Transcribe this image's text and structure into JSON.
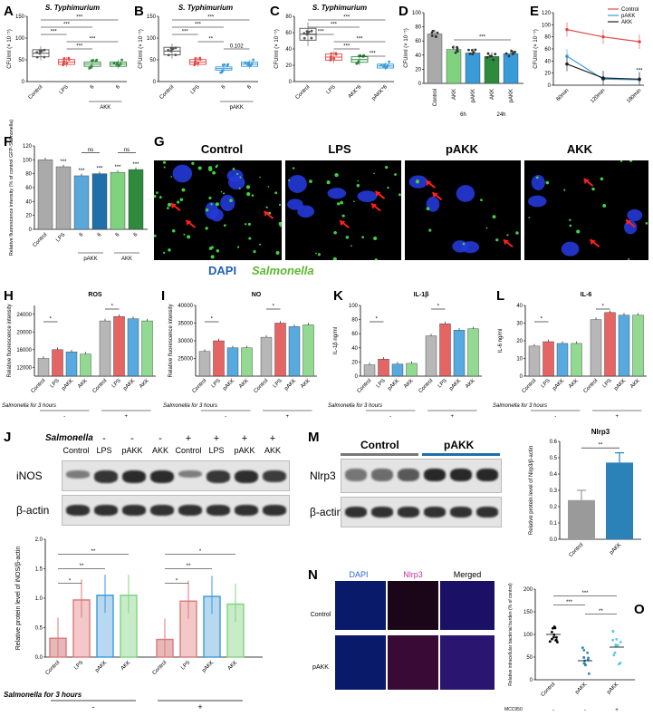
{
  "panel_letters": [
    "A",
    "B",
    "C",
    "D",
    "E",
    "F",
    "G",
    "H",
    "I",
    "K",
    "L",
    "J",
    "M",
    "N",
    "O"
  ],
  "colors": {
    "control": "#555555",
    "lps": "#e04a4a",
    "pakk": "#3a9bd9",
    "akk": "#2e8b3e",
    "akk_light": "#7fd37f",
    "gray": "#aaaaaa",
    "blue_dark": "#1f6fa8"
  },
  "A": {
    "title": "S. Typhimurium",
    "ylabel": "CFU/ml (× 10⁻⁵)",
    "xticks": [
      "Control",
      "LPS",
      "6",
      "6"
    ],
    "group": "AKK",
    "sig": [
      "***",
      "***",
      "***",
      "***",
      "***"
    ]
  },
  "B": {
    "title": "S. Typhimurium",
    "ylabel": "CFU/ml (× 10⁻⁵)",
    "xticks": [
      "Control",
      "LPS",
      "6",
      "6"
    ],
    "group": "pAKK",
    "sig": [
      "***",
      "***",
      "***",
      "**",
      "0.102"
    ]
  },
  "C": {
    "title": "S. Typhimurium",
    "ylabel": "CFU/ml (× 10⁻⁵)",
    "xticks": [
      "Control",
      "LPS",
      "AKK*6",
      "pAKK*6"
    ],
    "sig": [
      "***",
      "***",
      "***",
      "***",
      "***",
      "***"
    ]
  },
  "D": {
    "ylabel": "CFU/ml (× 10⁻⁵)",
    "xticks": [
      "Control",
      "AKK",
      "pAKK",
      "AKK",
      "pAKK"
    ],
    "subgroups": [
      "6h",
      "24h"
    ],
    "sig": [
      "***"
    ]
  },
  "E": {
    "ylabel": "CFU/ml (× 10⁻⁵)",
    "legend": [
      "Control",
      "pAKK",
      "AKK"
    ],
    "xticks": [
      "60min",
      "120min",
      "180min"
    ],
    "sig": [
      "**",
      "***"
    ]
  },
  "F": {
    "ylabel": "Relative fluorescence intensity (% of control GFP-Salmonella)",
    "xticks": [
      "Control",
      "LPS",
      "6",
      "6",
      "6",
      "6"
    ],
    "groups": [
      "pAKK",
      "AKK"
    ],
    "sig": [
      "***",
      "***",
      "***",
      "***",
      "***",
      "ns",
      "ns"
    ]
  },
  "G": {
    "labels": [
      "Control",
      "LPS",
      "pAKK",
      "AKK"
    ],
    "legend_dapi": "DAPI",
    "legend_salmonella": "Salmonella"
  },
  "H": {
    "title": "ROS",
    "ylabel": "Relative fluorescence intensity",
    "xticks": [
      "Control",
      "LPS",
      "pAKK",
      "AKK",
      "Control",
      "LPS",
      "pAKK",
      "AKK"
    ],
    "salmonella": "Salmonella for 3 hours",
    "minus": "-",
    "plus": "+"
  },
  "I": {
    "title": "NO",
    "ylabel": "Relative fluorescence intensity",
    "xticks": [
      "Control",
      "LPS",
      "pAKK",
      "AKK",
      "Control",
      "LPS",
      "pAKK",
      "AKK"
    ],
    "salmonella": "Salmonella for 3 hours",
    "minus": "-",
    "plus": "+"
  },
  "K": {
    "title": "IL-1β",
    "ylabel": "IL-1β ng/ml",
    "xticks": [
      "Control",
      "LPS",
      "pAKK",
      "AKK",
      "Control",
      "LPS",
      "pAKK",
      "AKK"
    ],
    "salmonella": "Salmonella for 3 hours",
    "minus": "-",
    "plus": "+"
  },
  "L": {
    "title": "IL-6",
    "ylabel": "IL-6 ng/ml",
    "xticks": [
      "Control",
      "LPS",
      "pAKK",
      "AKK",
      "Control",
      "LPS",
      "pAKK",
      "AKK"
    ],
    "salmonella": "Salmonella for 3 hours",
    "minus": "-",
    "plus": "+"
  },
  "J": {
    "salmonella_label": "Salmonella",
    "lanes": [
      "Control",
      "LPS",
      "pAKK",
      "AKK",
      "Control",
      "LPS",
      "pAKK",
      "AKK"
    ],
    "signs": [
      "-",
      "-",
      "-",
      "-",
      "+",
      "+",
      "+",
      "+"
    ],
    "proteins": [
      "iNOS",
      "β-actin"
    ],
    "bar_ylabel": "Relative protein level of iNOS/β-actin",
    "salmonella": "Salmonella for 3 hours",
    "minus": "-",
    "plus": "+",
    "sig": [
      "*",
      "**",
      "**",
      "*",
      "**",
      "*"
    ]
  },
  "M": {
    "groups": [
      "Control",
      "pAKK"
    ],
    "proteins": [
      "Nlrp3",
      "β-actin"
    ],
    "bar_title": "Nlrp3",
    "bar_ylabel": "Relative protein level of Nlrp3/β-actin",
    "xticks": [
      "Control",
      "pAKK"
    ],
    "sig": "**"
  },
  "N": {
    "cols": [
      "DAPI",
      "Nlrp3",
      "Merged"
    ],
    "rows": [
      "Control",
      "pAKK"
    ]
  },
  "O": {
    "ylabel": "Relative intracellular bacterial burden (% of control)",
    "xticks": [
      "Control",
      "pAKK",
      "pAKK"
    ],
    "mcc_label": "MCC950",
    "mcc": [
      "-",
      "-",
      "+"
    ],
    "sig": [
      "***",
      "***",
      "**"
    ]
  },
  "chart_data": [
    {
      "panel": "A",
      "type": "box",
      "categories": [
        "Control",
        "LPS",
        "AKK 6",
        "AKK 6"
      ],
      "values": [
        65,
        45,
        40,
        40
      ],
      "ylim": [
        0,
        150
      ],
      "yticks": [
        "0",
        "50",
        "100",
        "150"
      ]
    },
    {
      "panel": "B",
      "type": "box",
      "categories": [
        "Control",
        "LPS",
        "pAKK 6",
        "pAKK 6"
      ],
      "values": [
        70,
        45,
        30,
        40
      ],
      "ylim": [
        0,
        150
      ],
      "yticks": [
        "0",
        "50",
        "100",
        "150"
      ]
    },
    {
      "panel": "C",
      "type": "box",
      "categories": [
        "Control",
        "LPS",
        "AKK*6",
        "pAKK*6"
      ],
      "values": [
        58,
        30,
        27,
        19
      ],
      "ylim": [
        0,
        80
      ],
      "yticks": [
        "0",
        "20",
        "40",
        "60",
        "80"
      ]
    },
    {
      "panel": "D",
      "type": "bar",
      "categories": [
        "Control",
        "AKK 6h",
        "pAKK 6h",
        "AKK 24h",
        "pAKK 24h"
      ],
      "values": [
        70,
        48,
        43,
        38,
        42
      ],
      "ylim": [
        0,
        100
      ],
      "yticks": [
        "0",
        "20",
        "40",
        "60",
        "80",
        "100"
      ]
    },
    {
      "panel": "E",
      "type": "line",
      "x": [
        "60min",
        "120min",
        "180min"
      ],
      "series": [
        {
          "name": "Control",
          "values": [
            92,
            80,
            72
          ]
        },
        {
          "name": "pAKK",
          "values": [
            48,
            10,
            9
          ]
        },
        {
          "name": "AKK",
          "values": [
            35,
            12,
            10
          ]
        }
      ],
      "ylim": [
        0,
        120
      ],
      "yticks": [
        "0",
        "20",
        "40",
        "60",
        "80",
        "100",
        "120"
      ]
    },
    {
      "panel": "F",
      "type": "bar",
      "categories": [
        "Control",
        "LPS",
        "pAKK 6",
        "pAKK 6",
        "AKK 6",
        "AKK 6"
      ],
      "values": [
        100,
        90,
        77,
        80,
        82,
        86
      ],
      "ylim": [
        0,
        120
      ],
      "yticks": [
        "0",
        "20",
        "40",
        "60",
        "80",
        "100",
        "120"
      ]
    },
    {
      "panel": "H",
      "type": "bar",
      "categories": [
        "Control",
        "LPS",
        "pAKK",
        "AKK",
        "Control",
        "LPS",
        "pAKK",
        "AKK"
      ],
      "values": [
        14000,
        16000,
        15500,
        15000,
        22500,
        23500,
        23000,
        22500
      ],
      "ylim": [
        10000,
        26000
      ],
      "yticks": [
        "12000",
        "16000",
        "20000",
        "24000"
      ]
    },
    {
      "panel": "I",
      "type": "bar",
      "categories": [
        "Control",
        "LPS",
        "pAKK",
        "AKK",
        "Control",
        "LPS",
        "pAKK",
        "AKK"
      ],
      "values": [
        27000,
        30000,
        28000,
        28000,
        31000,
        35000,
        34000,
        34500
      ],
      "ylim": [
        20000,
        40000
      ],
      "yticks": [
        "25000",
        "30000",
        "35000",
        "40000"
      ]
    },
    {
      "panel": "K",
      "type": "bar",
      "categories": [
        "Control",
        "LPS",
        "pAKK",
        "AKK",
        "Control",
        "LPS",
        "pAKK",
        "AKK"
      ],
      "values": [
        16,
        24,
        17,
        18,
        57,
        74,
        65,
        67
      ],
      "ylim": [
        0,
        100
      ],
      "yticks": [
        "0",
        "20",
        "40",
        "60",
        "80",
        "100"
      ]
    },
    {
      "panel": "L",
      "type": "bar",
      "categories": [
        "Control",
        "LPS",
        "pAKK",
        "AKK",
        "Control",
        "LPS",
        "pAKK",
        "AKK"
      ],
      "values": [
        17,
        19.5,
        18.5,
        18.5,
        32,
        36,
        34.5,
        34.5
      ],
      "ylim": [
        0,
        40
      ],
      "yticks": [
        "0",
        "10",
        "20",
        "30",
        "40"
      ]
    },
    {
      "panel": "J",
      "type": "bar",
      "categories": [
        "Control",
        "LPS",
        "pAKK",
        "AKK",
        "Control",
        "LPS",
        "pAKK",
        "AKK"
      ],
      "values": [
        0.32,
        0.97,
        1.05,
        1.05,
        0.3,
        0.95,
        1.03,
        0.9
      ],
      "ylim": [
        0,
        2.0
      ],
      "yticks": [
        "0.0",
        "0.5",
        "1.0",
        "1.5",
        "2.0"
      ]
    },
    {
      "panel": "M",
      "type": "bar",
      "categories": [
        "Control",
        "pAKK"
      ],
      "values": [
        0.24,
        0.47
      ],
      "ylim": [
        0,
        0.6
      ],
      "yticks": [
        "0.0",
        "0.1",
        "0.2",
        "0.3",
        "0.4",
        "0.5",
        "0.6"
      ]
    },
    {
      "panel": "O",
      "type": "scatter",
      "categories": [
        "Control",
        "pAKK",
        "pAKK+MCC950"
      ],
      "values": [
        100,
        42,
        72
      ],
      "ylim": [
        0,
        200
      ],
      "yticks": [
        "0",
        "50",
        "100",
        "150",
        "200"
      ]
    }
  ]
}
